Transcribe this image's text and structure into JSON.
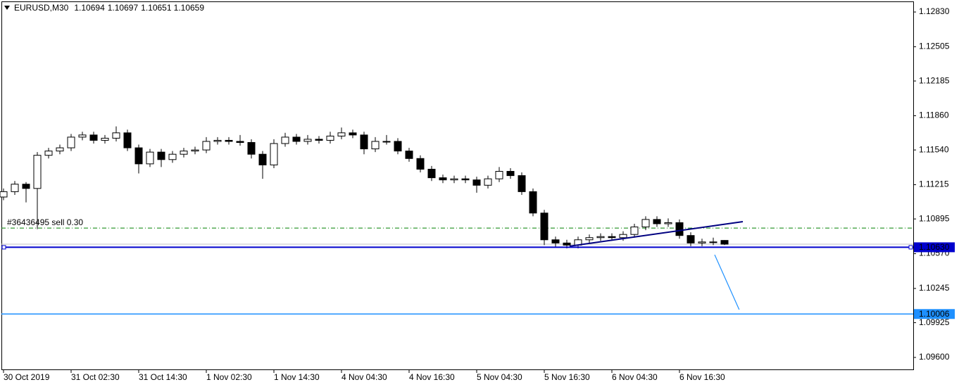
{
  "chart_data": {
    "type": "candlestick",
    "title": "EURUSD,M30",
    "x": [
      0,
      2,
      4,
      6,
      8,
      10,
      12,
      14,
      16,
      18,
      20,
      22,
      24,
      26,
      28,
      30,
      32,
      34,
      36,
      38,
      40,
      42,
      44,
      46,
      48,
      50,
      52,
      54,
      56,
      58,
      60,
      62,
      64,
      66,
      68,
      70,
      72,
      74,
      76,
      78,
      80,
      82,
      84,
      86,
      88,
      90,
      92,
      94,
      96,
      98,
      100,
      102,
      104,
      106,
      108,
      110,
      112,
      114,
      116,
      118,
      120,
      122,
      124,
      126,
      128
    ],
    "open": [
      1.111,
      1.1115,
      1.1122,
      1.1118,
      1.1149,
      1.1153,
      1.1156,
      1.1166,
      1.1168,
      1.1163,
      1.1165,
      1.117,
      1.1156,
      1.1141,
      1.1152,
      1.1145,
      1.115,
      1.1153,
      1.1154,
      1.1162,
      1.1163,
      1.1162,
      1.1161,
      1.115,
      1.114,
      1.116,
      1.1166,
      1.1162,
      1.1164,
      1.1163,
      1.1167,
      1.117,
      1.1168,
      1.1155,
      1.1162,
      1.1162,
      1.1153,
      1.1146,
      1.1136,
      1.1128,
      1.1126,
      1.1127,
      1.1126,
      1.1121,
      1.1127,
      1.1134,
      1.113,
      1.1115,
      1.1095,
      1.107,
      1.1067,
      1.1065,
      1.107,
      1.1072,
      1.1073,
      1.1072,
      1.1075,
      1.1082,
      1.1089,
      1.1085,
      1.1086,
      1.1074,
      1.1067,
      1.1068,
      1.10694
    ],
    "high": [
      1.1118,
      1.1125,
      1.1124,
      1.1152,
      1.1156,
      1.1159,
      1.1169,
      1.1171,
      1.1171,
      1.1168,
      1.1176,
      1.1173,
      1.1159,
      1.1155,
      1.1155,
      1.1153,
      1.1156,
      1.1157,
      1.1166,
      1.1166,
      1.1166,
      1.1168,
      1.1164,
      1.1153,
      1.1164,
      1.117,
      1.1169,
      1.1168,
      1.1167,
      1.1171,
      1.1175,
      1.1173,
      1.1171,
      1.1166,
      1.1168,
      1.1165,
      1.1156,
      1.1149,
      1.1139,
      1.1131,
      1.113,
      1.113,
      1.1129,
      1.113,
      1.1138,
      1.1137,
      1.1133,
      1.1118,
      1.1098,
      1.1073,
      1.107,
      1.1073,
      1.1075,
      1.1076,
      1.1076,
      1.1078,
      1.1085,
      1.1092,
      1.1092,
      1.109,
      1.1089,
      1.1077,
      1.1071,
      1.1072,
      1.10697
    ],
    "low": [
      1.1107,
      1.1112,
      1.1105,
      1.108,
      1.1146,
      1.115,
      1.1153,
      1.1163,
      1.116,
      1.116,
      1.1162,
      1.1153,
      1.1132,
      1.1138,
      1.1138,
      1.1142,
      1.1147,
      1.115,
      1.1151,
      1.1159,
      1.1159,
      1.1158,
      1.1146,
      1.1127,
      1.1137,
      1.1157,
      1.1159,
      1.1159,
      1.116,
      1.116,
      1.1164,
      1.1165,
      1.115,
      1.1152,
      1.1159,
      1.115,
      1.1143,
      1.1133,
      1.1125,
      1.1123,
      1.1123,
      1.1123,
      1.1114,
      1.1118,
      1.1124,
      1.1127,
      1.1112,
      1.1092,
      1.1065,
      1.1063,
      1.1062,
      1.1062,
      1.1067,
      1.1069,
      1.1069,
      1.1069,
      1.1072,
      1.1079,
      1.1082,
      1.1082,
      1.1071,
      1.1064,
      1.1064,
      1.1065,
      1.10651
    ],
    "close": [
      1.1115,
      1.1122,
      1.1118,
      1.1149,
      1.1153,
      1.1156,
      1.1166,
      1.1168,
      1.1163,
      1.1165,
      1.117,
      1.1156,
      1.1141,
      1.1152,
      1.1145,
      1.115,
      1.1153,
      1.1154,
      1.1162,
      1.1163,
      1.1162,
      1.1161,
      1.115,
      1.114,
      1.116,
      1.1166,
      1.1162,
      1.1164,
      1.1163,
      1.1167,
      1.117,
      1.1168,
      1.1155,
      1.1162,
      1.1162,
      1.1153,
      1.1146,
      1.1136,
      1.1128,
      1.1126,
      1.1127,
      1.1126,
      1.1121,
      1.1127,
      1.1134,
      1.113,
      1.1115,
      1.1095,
      1.107,
      1.1067,
      1.1065,
      1.107,
      1.1072,
      1.1073,
      1.1072,
      1.1075,
      1.1082,
      1.1089,
      1.1085,
      1.1086,
      1.1074,
      1.1067,
      1.1068,
      1.1068,
      1.10659
    ],
    "up_color": "#ffffff",
    "down_color": "#000000",
    "xlim": [
      -0.375,
      161.5
    ],
    "ylim": [
      1.09488,
      1.12929
    ],
    "xticks": [
      {
        "value": 0,
        "label": "30 Oct 2019"
      },
      {
        "value": 12,
        "label": "31 Oct 02:30"
      },
      {
        "value": 24,
        "label": "31 Oct 14:30"
      },
      {
        "value": 36,
        "label": "1 Nov 02:30"
      },
      {
        "value": 48,
        "label": "1 Nov 14:30"
      },
      {
        "value": 60,
        "label": "4 Nov 04:30"
      },
      {
        "value": 72,
        "label": "4 Nov 16:30"
      },
      {
        "value": 84,
        "label": "5 Nov 04:30"
      },
      {
        "value": 96,
        "label": "5 Nov 16:30"
      },
      {
        "value": 108,
        "label": "6 Nov 04:30"
      },
      {
        "value": 120,
        "label": "6 Nov 16:30"
      }
    ],
    "yticks": [
      {
        "value": 1.1283,
        "label": "1.12830"
      },
      1.12505,
      1.12185,
      {
        "value": 1.1186,
        "label": "1.11860"
      },
      {
        "value": 1.1154,
        "label": "1.11540"
      },
      1.11215,
      1.10895,
      {
        "value": 1.1057,
        "label": "1.10570"
      },
      1.10245,
      1.09925,
      {
        "value": 1.096,
        "label": "1.09600"
      }
    ],
    "bid_line": 1.10659,
    "order_line": {
      "value": 1.1081,
      "label": "#36436495 sell 0.30",
      "color": "#008000"
    },
    "levels": [
      {
        "value": 1.1063,
        "label": "1.10630",
        "color": "#0000cd"
      },
      {
        "value": 1.10006,
        "label": "1.10006",
        "color": "#1e90ff"
      }
    ],
    "trendlines": [
      {
        "x": [
          100.5,
          131.25
        ],
        "y": [
          1.1064,
          1.1087
        ],
        "color": "#000080"
      },
      {
        "x": [
          126.25,
          130.6
        ],
        "y": [
          1.1056,
          1.10047
        ],
        "color": "#1e90ff"
      }
    ]
  }
}
